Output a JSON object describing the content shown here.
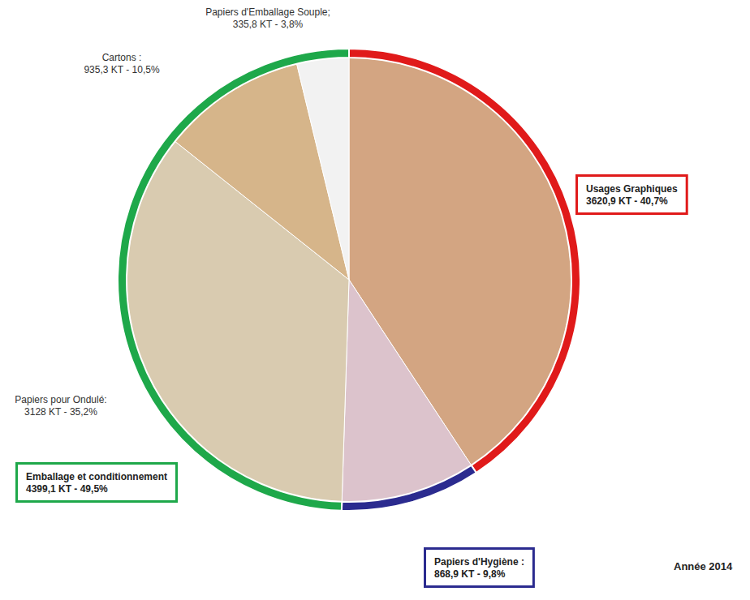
{
  "chart_data": {
    "type": "pie",
    "categories": [
      "Usages Graphiques",
      "Papiers d'Hygiène :",
      "Papiers pour Ondulé:",
      "Cartons :",
      "Papiers d'Emballage Souple;"
    ],
    "values": [
      3620.9,
      868.9,
      3128,
      935.3,
      335.8
    ],
    "value_labels": [
      "3620,9 KT - 40,7%",
      "868,9 KT - 9,8%",
      "3128 KT - 35,2%",
      "935,3 KT - 10,5%",
      "335,8 KT - 3,8%"
    ],
    "colors": [
      "#d3a582",
      "#dcc3cc",
      "#d9cbb0",
      "#d6b58a",
      "#f2f2f2"
    ],
    "data_labels": true,
    "groups": [
      {
        "name": "Usages Graphiques",
        "value": 3620.9,
        "value_label": "3620,9 KT - 40,7%",
        "color": "#e01a1a"
      },
      {
        "name": "Papiers d'Hygiène :",
        "value": 868.9,
        "value_label": "868,9 KT - 9,8%",
        "color": "#2b2b8f"
      },
      {
        "name": "Emballage et conditionnement",
        "value": 4399.1,
        "value_label": "4399,1 KT - 49,5%",
        "color": "#1ea84a"
      }
    ],
    "annotations": [
      "Année 2014"
    ]
  }
}
